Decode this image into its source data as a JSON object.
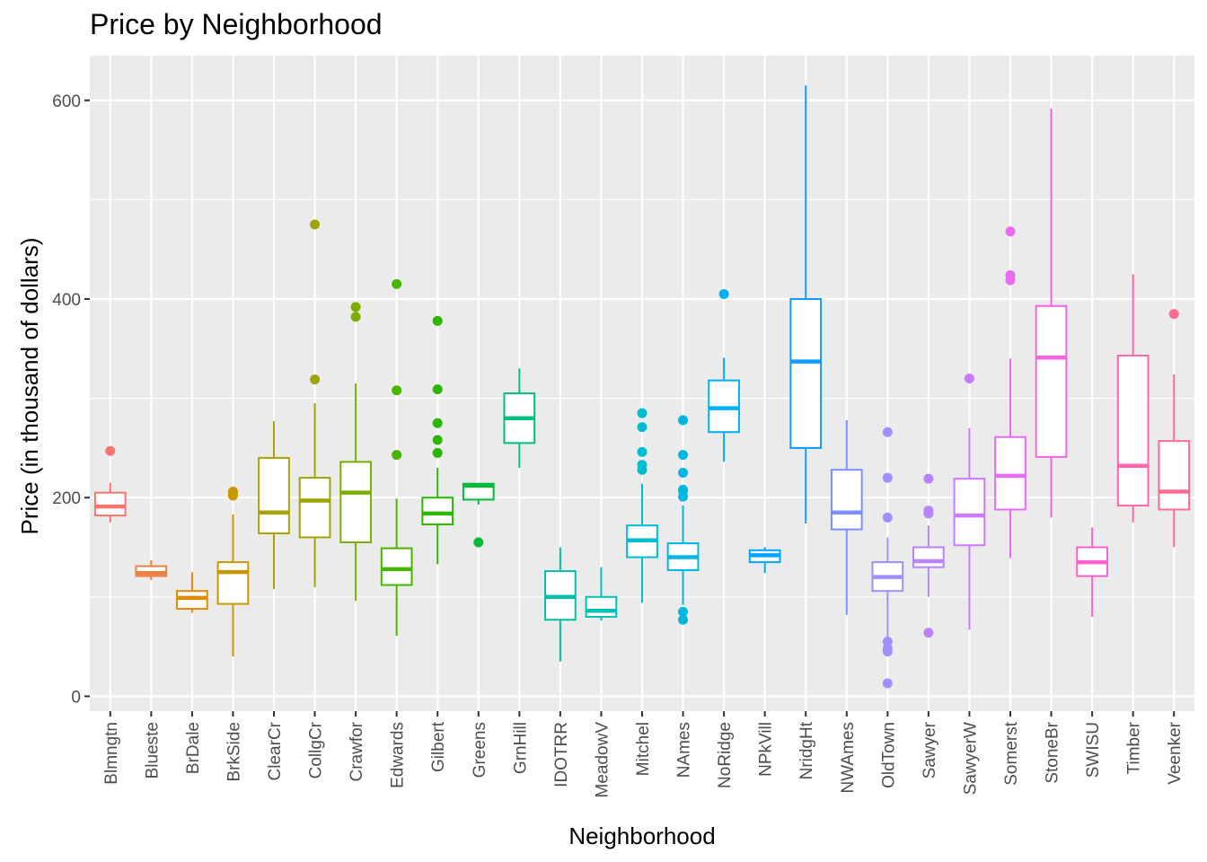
{
  "chart_data": {
    "type": "boxplot",
    "title": "Price by Neighborhood",
    "xlabel": "Neighborhood",
    "ylabel": "Price (in thousand of dollars)",
    "ylim": [
      -15,
      645
    ],
    "yticks": [
      0,
      200,
      400,
      600
    ],
    "grid": true,
    "legend": "none",
    "categories": [
      "Blmngtn",
      "Blueste",
      "BrDale",
      "BrkSide",
      "ClearCr",
      "CollgCr",
      "Crawfor",
      "Edwards",
      "Gilbert",
      "Greens",
      "GrnHill",
      "IDOTRR",
      "MeadowV",
      "Mitchel",
      "NAmes",
      "NoRidge",
      "NPkVill",
      "NridgHt",
      "NWAmes",
      "OldTown",
      "Sawyer",
      "SawyerW",
      "Somerst",
      "StoneBr",
      "SWISU",
      "Timber",
      "Veenker"
    ],
    "colors": [
      "#F8766D",
      "#EE8044",
      "#DE8C00",
      "#C79800",
      "#ADA200",
      "#9FA500",
      "#7CAE00",
      "#49B500",
      "#2DB600",
      "#00BA38",
      "#00BF7D",
      "#00C1A3",
      "#00C0B8",
      "#00BDD0",
      "#00B6E3",
      "#00B0F6",
      "#00A6FF",
      "#0F9BFF",
      "#7B8FFF",
      "#9F8FFF",
      "#B983FF",
      "#CB7AFF",
      "#E76BF3",
      "#F564E3",
      "#FD61D1",
      "#FF65AC",
      "#FF6C91"
    ],
    "series": [
      {
        "min": 175,
        "q1": 182,
        "median": 191,
        "q3": 205,
        "max": 215,
        "outliers": [
          247
        ]
      },
      {
        "min": 117,
        "q1": 121,
        "median": 124,
        "q3": 131,
        "max": 137,
        "outliers": []
      },
      {
        "min": 84,
        "q1": 88,
        "median": 99,
        "q3": 106,
        "max": 125,
        "outliers": []
      },
      {
        "min": 40,
        "q1": 93,
        "median": 125,
        "q3": 135,
        "max": 183,
        "outliers": [
          202,
          204,
          206
        ]
      },
      {
        "min": 108,
        "q1": 164,
        "median": 185,
        "q3": 240,
        "max": 277,
        "outliers": []
      },
      {
        "min": 110,
        "q1": 160,
        "median": 197,
        "q3": 220,
        "max": 295,
        "outliers": [
          319,
          475
        ]
      },
      {
        "min": 96,
        "q1": 155,
        "median": 205,
        "q3": 236,
        "max": 315,
        "outliers": [
          382,
          392
        ]
      },
      {
        "min": 61,
        "q1": 112,
        "median": 128,
        "q3": 149,
        "max": 199,
        "outliers": [
          243,
          308,
          415
        ]
      },
      {
        "min": 133,
        "q1": 173,
        "median": 184,
        "q3": 200,
        "max": 230,
        "outliers": [
          245,
          258,
          275,
          309,
          378
        ]
      },
      {
        "min": 193,
        "q1": 198,
        "median": 212,
        "q3": 214,
        "max": 214,
        "outliers": [
          155
        ]
      },
      {
        "min": 230,
        "q1": 255,
        "median": 280,
        "q3": 305,
        "max": 330,
        "outliers": []
      },
      {
        "min": 35,
        "q1": 77,
        "median": 100,
        "q3": 126,
        "max": 150,
        "outliers": []
      },
      {
        "min": 76,
        "q1": 80,
        "median": 86,
        "q3": 100,
        "max": 130,
        "outliers": []
      },
      {
        "min": 94,
        "q1": 140,
        "median": 157,
        "q3": 172,
        "max": 214,
        "outliers": [
          228,
          233,
          246,
          271,
          285
        ]
      },
      {
        "min": 92,
        "q1": 127,
        "median": 140,
        "q3": 154,
        "max": 192,
        "outliers": [
          77,
          85,
          201,
          207,
          208,
          225,
          243,
          278
        ]
      },
      {
        "min": 236,
        "q1": 266,
        "median": 290,
        "q3": 318,
        "max": 341,
        "outliers": [
          405
        ]
      },
      {
        "min": 124,
        "q1": 135,
        "median": 142,
        "q3": 147,
        "max": 150,
        "outliers": []
      },
      {
        "min": 174,
        "q1": 250,
        "median": 337,
        "q3": 400,
        "max": 615,
        "outliers": []
      },
      {
        "min": 82,
        "q1": 168,
        "median": 185,
        "q3": 228,
        "max": 278,
        "outliers": []
      },
      {
        "min": 58,
        "q1": 106,
        "median": 120,
        "q3": 135,
        "max": 160,
        "outliers": [
          13,
          45,
          48,
          55,
          180,
          220,
          266
        ]
      },
      {
        "min": 100,
        "q1": 130,
        "median": 136,
        "q3": 150,
        "max": 172,
        "outliers": [
          64,
          184,
          187,
          219
        ]
      },
      {
        "min": 67,
        "q1": 152,
        "median": 182,
        "q3": 219,
        "max": 270,
        "outliers": [
          320
        ]
      },
      {
        "min": 139,
        "q1": 188,
        "median": 222,
        "q3": 261,
        "max": 340,
        "outliers": [
          419,
          424,
          468
        ]
      },
      {
        "min": 180,
        "q1": 241,
        "median": 341,
        "q3": 393,
        "max": 592,
        "outliers": []
      },
      {
        "min": 80,
        "q1": 121,
        "median": 135,
        "q3": 150,
        "max": 170,
        "outliers": []
      },
      {
        "min": 175,
        "q1": 192,
        "median": 232,
        "q3": 343,
        "max": 425,
        "outliers": []
      },
      {
        "min": 150,
        "q1": 188,
        "median": 206,
        "q3": 257,
        "max": 324,
        "outliers": [
          385
        ]
      }
    ]
  }
}
